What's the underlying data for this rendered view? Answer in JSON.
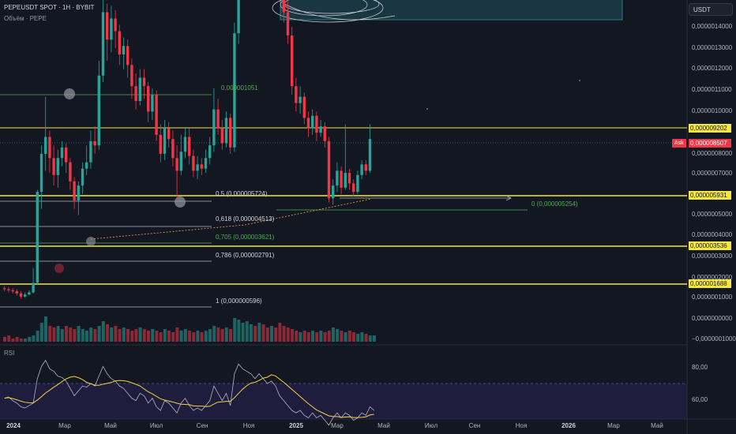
{
  "legend": {
    "symbol": "PEPEUSDT SPOT · 1H · BYBIT",
    "volume": "Объём · PEPE"
  },
  "rsi_label": "RSI",
  "currency": "USDT",
  "ask": "Ask",
  "price_axis": [
    "0,0000014000",
    "0,0000013000",
    "0,0000012000",
    "0,0000011000",
    "0,0000010000",
    "0,0000008000",
    "0,0000007000",
    "0,0000005000",
    "0,0000004000",
    "0,0000003000",
    "0,0000002000",
    "0,0000001000",
    "0,0000000000",
    "−0,0000001000"
  ],
  "price_tags": [
    {
      "text": "0,000009202",
      "bg": "#f5e642",
      "color": "#131722"
    },
    {
      "text": "0,000008507",
      "bg": "#f23645",
      "color": "#ffffff"
    },
    {
      "text": "0,000005931",
      "bg": "#f5e642",
      "color": "#131722"
    },
    {
      "text": "0,000003536",
      "bg": "#f5e642",
      "color": "#131722"
    },
    {
      "text": "0,000001688",
      "bg": "#f5e642",
      "color": "#131722"
    }
  ],
  "fib": [
    {
      "text": "0,000001051",
      "color": "#4caf50"
    },
    {
      "text": "0,5 (0,000005724)",
      "color": "#d1d4dc"
    },
    {
      "text": "0,618 (0,000004513)",
      "color": "#d1d4dc"
    },
    {
      "text": "0,705 (0,000003621)",
      "color": "#4caf50"
    },
    {
      "text": "0,786 (0,000002791)",
      "color": "#d1d4dc"
    },
    {
      "text": "1 (0,000000596)",
      "color": "#d1d4dc"
    },
    {
      "text": "0 (0,000005254)",
      "color": "#4caf50"
    }
  ],
  "rsi_axis": [
    "80,00",
    "60,00"
  ],
  "time_axis": [
    {
      "text": "2024",
      "bold": true
    },
    {
      "text": "Мар",
      "bold": false
    },
    {
      "text": "Май",
      "bold": false
    },
    {
      "text": "Июл",
      "bold": false
    },
    {
      "text": "Сен",
      "bold": false
    },
    {
      "text": "Ноя",
      "bold": false
    },
    {
      "text": "2025",
      "bold": true
    },
    {
      "text": "Мар",
      "bold": false
    },
    {
      "text": "Май",
      "bold": false
    },
    {
      "text": "Июл",
      "bold": false
    },
    {
      "text": "Сен",
      "bold": false
    },
    {
      "text": "Ноя",
      "bold": false
    },
    {
      "text": "2026",
      "bold": true
    },
    {
      "text": "Мар",
      "bold": false
    },
    {
      "text": "Май",
      "bold": false
    }
  ],
  "colors": {
    "up": "#26a69a",
    "down": "#f23645",
    "level": "#f5e642",
    "rsi": "#b2b5be",
    "rsi_ma": "#f5d142"
  },
  "candles": [
    {
      "o": 1.45,
      "c": 1.4,
      "h": 1.55,
      "l": 1.3
    },
    {
      "o": 1.4,
      "c": 1.35,
      "h": 1.5,
      "l": 1.25
    },
    {
      "o": 1.35,
      "c": 1.3,
      "h": 1.45,
      "l": 1.2
    },
    {
      "o": 1.3,
      "c": 1.2,
      "h": 1.4,
      "l": 1.1
    },
    {
      "o": 1.2,
      "c": 1.05,
      "h": 1.3,
      "l": 0.95
    },
    {
      "o": 1.05,
      "c": 1.15,
      "h": 1.25,
      "l": 1.0
    },
    {
      "o": 1.15,
      "c": 1.25,
      "h": 1.35,
      "l": 1.1
    },
    {
      "o": 1.25,
      "c": 1.7,
      "h": 2.4,
      "l": 1.2
    },
    {
      "o": 1.7,
      "c": 6.0,
      "h": 6.1,
      "l": 1.6
    },
    {
      "o": 6.0,
      "c": 7.8,
      "h": 8.2,
      "l": 5.2
    },
    {
      "o": 7.8,
      "c": 8.6,
      "h": 10.5,
      "l": 7.0
    },
    {
      "o": 8.6,
      "c": 7.6,
      "h": 8.9,
      "l": 6.9
    },
    {
      "o": 7.6,
      "c": 6.8,
      "h": 8.2,
      "l": 6.3
    },
    {
      "o": 6.8,
      "c": 7.6,
      "h": 8.0,
      "l": 6.2
    },
    {
      "o": 7.6,
      "c": 8.1,
      "h": 8.4,
      "l": 7.2
    },
    {
      "o": 8.1,
      "c": 7.4,
      "h": 8.3,
      "l": 6.9
    },
    {
      "o": 7.4,
      "c": 6.5,
      "h": 7.6,
      "l": 6.1
    },
    {
      "o": 6.5,
      "c": 5.6,
      "h": 6.7,
      "l": 5.2
    },
    {
      "o": 5.6,
      "c": 6.3,
      "h": 6.5,
      "l": 4.9
    },
    {
      "o": 6.3,
      "c": 7.1,
      "h": 7.4,
      "l": 5.9
    },
    {
      "o": 7.1,
      "c": 7.4,
      "h": 8.2,
      "l": 6.8
    },
    {
      "o": 7.4,
      "c": 8.4,
      "h": 8.9,
      "l": 7.1
    },
    {
      "o": 8.4,
      "c": 8.2,
      "h": 9.1,
      "l": 7.8
    },
    {
      "o": 8.2,
      "c": 11.5,
      "h": 12.2,
      "l": 8.0
    },
    {
      "o": 11.5,
      "c": 14.5,
      "h": 15.2,
      "l": 11.2
    },
    {
      "o": 14.5,
      "c": 13.2,
      "h": 14.9,
      "l": 12.2
    },
    {
      "o": 13.2,
      "c": 14.2,
      "h": 14.8,
      "l": 12.6
    },
    {
      "o": 14.2,
      "c": 13.6,
      "h": 14.6,
      "l": 12.8
    },
    {
      "o": 13.6,
      "c": 12.5,
      "h": 13.9,
      "l": 12.0
    },
    {
      "o": 12.5,
      "c": 12.9,
      "h": 13.3,
      "l": 11.8
    },
    {
      "o": 12.9,
      "c": 12.0,
      "h": 13.2,
      "l": 11.4
    },
    {
      "o": 12.0,
      "c": 11.0,
      "h": 12.3,
      "l": 10.4
    },
    {
      "o": 11.0,
      "c": 10.3,
      "h": 11.6,
      "l": 9.9
    },
    {
      "o": 10.3,
      "c": 11.4,
      "h": 11.8,
      "l": 10.1
    },
    {
      "o": 11.4,
      "c": 11.0,
      "h": 11.8,
      "l": 10.4
    },
    {
      "o": 11.0,
      "c": 9.8,
      "h": 11.2,
      "l": 9.3
    },
    {
      "o": 9.8,
      "c": 10.6,
      "h": 10.9,
      "l": 9.4
    },
    {
      "o": 10.6,
      "c": 8.7,
      "h": 10.8,
      "l": 8.4
    },
    {
      "o": 8.7,
      "c": 7.8,
      "h": 9.2,
      "l": 7.4
    },
    {
      "o": 7.8,
      "c": 9.0,
      "h": 9.4,
      "l": 7.5
    },
    {
      "o": 9.0,
      "c": 8.5,
      "h": 9.3,
      "l": 8.1
    },
    {
      "o": 8.5,
      "c": 7.6,
      "h": 8.9,
      "l": 7.2
    },
    {
      "o": 7.6,
      "c": 7.0,
      "h": 8.2,
      "l": 5.7
    },
    {
      "o": 7.0,
      "c": 7.9,
      "h": 8.7,
      "l": 6.8
    },
    {
      "o": 7.9,
      "c": 8.6,
      "h": 9.0,
      "l": 7.6
    },
    {
      "o": 8.6,
      "c": 7.7,
      "h": 9.0,
      "l": 7.3
    },
    {
      "o": 7.7,
      "c": 7.0,
      "h": 8.0,
      "l": 6.7
    },
    {
      "o": 7.0,
      "c": 7.3,
      "h": 7.7,
      "l": 6.6
    },
    {
      "o": 7.3,
      "c": 7.1,
      "h": 7.6,
      "l": 6.8
    },
    {
      "o": 7.1,
      "c": 7.6,
      "h": 8.0,
      "l": 6.9
    },
    {
      "o": 7.6,
      "c": 8.2,
      "h": 8.6,
      "l": 7.3
    },
    {
      "o": 8.2,
      "c": 9.9,
      "h": 10.9,
      "l": 7.9
    },
    {
      "o": 9.9,
      "c": 9.0,
      "h": 10.4,
      "l": 8.7
    },
    {
      "o": 9.0,
      "c": 8.3,
      "h": 9.4,
      "l": 8.0
    },
    {
      "o": 8.3,
      "c": 9.5,
      "h": 9.8,
      "l": 8.1
    },
    {
      "o": 9.5,
      "c": 8.1,
      "h": 9.7,
      "l": 7.8
    },
    {
      "o": 8.1,
      "c": 13.5,
      "h": 14.0,
      "l": 7.9
    },
    {
      "o": 13.5,
      "c": 17.5,
      "h": 18.5,
      "l": 13.0
    },
    {
      "o": 17.5,
      "c": 18.0,
      "h": 19.0,
      "l": 17.0
    },
    {
      "o": 18.0,
      "c": 20.0,
      "h": 21.0,
      "l": 17.5
    },
    {
      "o": 20.0,
      "c": 21.0,
      "h": 22.0,
      "l": 19.5
    },
    {
      "o": 21.0,
      "c": 20.0,
      "h": 21.5,
      "l": 19.0
    },
    {
      "o": 20.0,
      "c": 22.0,
      "h": 23.0,
      "l": 19.5
    },
    {
      "o": 22.0,
      "c": 21.0,
      "h": 22.5,
      "l": 20.0
    },
    {
      "o": 21.0,
      "c": 20.5,
      "h": 21.5,
      "l": 20.0
    },
    {
      "o": 20.5,
      "c": 21.5,
      "h": 22.0,
      "l": 20.0
    },
    {
      "o": 21.5,
      "c": 20.0,
      "h": 22.0,
      "l": 19.5
    },
    {
      "o": 20.0,
      "c": 16.0,
      "h": 20.5,
      "l": 15.5
    },
    {
      "o": 16.0,
      "c": 14.5,
      "h": 16.5,
      "l": 14.0
    },
    {
      "o": 14.5,
      "c": 13.4,
      "h": 15.0,
      "l": 13.0
    },
    {
      "o": 13.4,
      "c": 11.0,
      "h": 13.8,
      "l": 10.6
    },
    {
      "o": 11.0,
      "c": 10.2,
      "h": 11.4,
      "l": 9.8
    },
    {
      "o": 10.2,
      "c": 10.5,
      "h": 11.0,
      "l": 9.7
    },
    {
      "o": 10.5,
      "c": 9.5,
      "h": 10.7,
      "l": 9.2
    },
    {
      "o": 9.5,
      "c": 9.0,
      "h": 9.8,
      "l": 8.6
    },
    {
      "o": 9.0,
      "c": 9.6,
      "h": 9.9,
      "l": 8.7
    },
    {
      "o": 9.6,
      "c": 8.8,
      "h": 9.8,
      "l": 8.4
    },
    {
      "o": 8.8,
      "c": 9.1,
      "h": 9.4,
      "l": 8.6
    },
    {
      "o": 9.1,
      "c": 8.4,
      "h": 9.3,
      "l": 8.1
    },
    {
      "o": 8.4,
      "c": 5.7,
      "h": 8.6,
      "l": 5.5
    },
    {
      "o": 5.7,
      "c": 6.3,
      "h": 6.6,
      "l": 5.4
    },
    {
      "o": 6.3,
      "c": 7.0,
      "h": 7.4,
      "l": 6.0
    },
    {
      "o": 7.0,
      "c": 6.2,
      "h": 7.2,
      "l": 5.9
    },
    {
      "o": 6.2,
      "c": 6.9,
      "h": 9.2,
      "l": 6.1
    },
    {
      "o": 6.9,
      "c": 6.4,
      "h": 7.1,
      "l": 6.1
    },
    {
      "o": 6.4,
      "c": 6.0,
      "h": 6.6,
      "l": 5.8
    },
    {
      "o": 6.0,
      "c": 6.8,
      "h": 7.0,
      "l": 5.9
    },
    {
      "o": 6.8,
      "c": 7.3,
      "h": 7.5,
      "l": 6.6
    },
    {
      "o": 7.3,
      "c": 7.0,
      "h": 7.5,
      "l": 6.8
    },
    {
      "o": 7.0,
      "c": 8.5,
      "h": 9.2,
      "l": 6.9
    }
  ],
  "volume": [
    3,
    4,
    2,
    3,
    2,
    2,
    3,
    4,
    7,
    12,
    16,
    10,
    9,
    10,
    8,
    10,
    9,
    8,
    10,
    8,
    7,
    9,
    8,
    10,
    13,
    11,
    9,
    10,
    8,
    9,
    8,
    7,
    8,
    9,
    8,
    7,
    8,
    7,
    6,
    8,
    7,
    6,
    9,
    7,
    8,
    7,
    6,
    7,
    6,
    7,
    8,
    10,
    9,
    8,
    9,
    8,
    15,
    14,
    12,
    13,
    11,
    10,
    12,
    11,
    9,
    10,
    9,
    12,
    10,
    9,
    8,
    7,
    6,
    7,
    6,
    7,
    6,
    7,
    6,
    7,
    9,
    8,
    7,
    6,
    7,
    6,
    5,
    6,
    5,
    4,
    4
  ],
  "rsi": [
    62,
    63,
    60,
    58,
    55,
    54,
    56,
    58,
    78,
    88,
    93,
    86,
    84,
    80,
    79,
    76,
    70,
    64,
    68,
    72,
    71,
    74,
    72,
    80,
    88,
    82,
    78,
    76,
    72,
    70,
    66,
    62,
    60,
    66,
    64,
    58,
    62,
    55,
    52,
    60,
    58,
    54,
    50,
    58,
    62,
    56,
    52,
    54,
    52,
    56,
    60,
    72,
    66,
    60,
    66,
    56,
    82,
    90,
    86,
    84,
    82,
    78,
    82,
    78,
    74,
    76,
    72,
    64,
    60,
    56,
    52,
    50,
    52,
    48,
    46,
    50,
    46,
    48,
    44,
    40,
    46,
    50,
    46,
    50,
    48,
    44,
    46,
    50,
    48,
    55,
    52
  ]
}
